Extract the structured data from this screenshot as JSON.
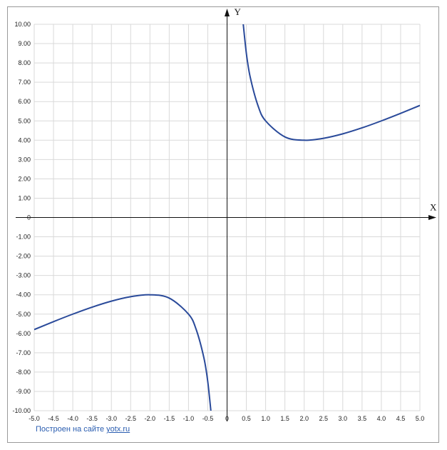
{
  "chart_data": {
    "type": "line",
    "function_description": "",
    "xlabel": "X",
    "ylabel": "Y",
    "xlim": [
      -5,
      5
    ],
    "ylim": [
      -10,
      10
    ],
    "grid": true,
    "x_ticks": [
      "-5.0",
      "-4.5",
      "-4.0",
      "-3.5",
      "-3.0",
      "-2.5",
      "-2.0",
      "-1.5",
      "-1.0",
      "-0.5",
      "0",
      "0.5",
      "1.0",
      "1.5",
      "2.0",
      "2.5",
      "3.0",
      "3.5",
      "4.0",
      "4.5",
      "5.0"
    ],
    "y_ticks": [
      "10.00",
      "9.00",
      "8.00",
      "7.00",
      "6.00",
      "5.00",
      "4.00",
      "3.00",
      "2.00",
      "1.00",
      "0",
      "-1.00",
      "-2.00",
      "-3.00",
      "-4.00",
      "-5.00",
      "-6.00",
      "-7.00",
      "-8.00",
      "-9.00",
      "-10.00"
    ],
    "series": [
      {
        "color": "#2a4a9a",
        "x": [
          -5.0,
          -4.5,
          -4.0,
          -3.5,
          -3.0,
          -2.5,
          -2.0,
          -1.5,
          -1.0,
          -0.8,
          -0.6,
          -0.5,
          -0.4
        ],
        "y": [
          -5.8,
          -5.39,
          -5.0,
          -4.64,
          -4.33,
          -4.1,
          -4.0,
          -4.17,
          -5.0,
          -5.8,
          -7.27,
          -8.5,
          -10.4
        ]
      },
      {
        "color": "#2a4a9a",
        "x": [
          0.4,
          0.5,
          0.6,
          0.8,
          1.0,
          1.5,
          2.0,
          2.5,
          3.0,
          3.5,
          4.0,
          4.5,
          5.0
        ],
        "y": [
          10.4,
          8.5,
          7.27,
          5.8,
          5.0,
          4.17,
          4.0,
          4.1,
          4.33,
          4.64,
          5.0,
          5.39,
          5.8
        ]
      }
    ]
  },
  "footer": {
    "prefix": "Построен на сайте ",
    "link": "yotx.ru"
  }
}
